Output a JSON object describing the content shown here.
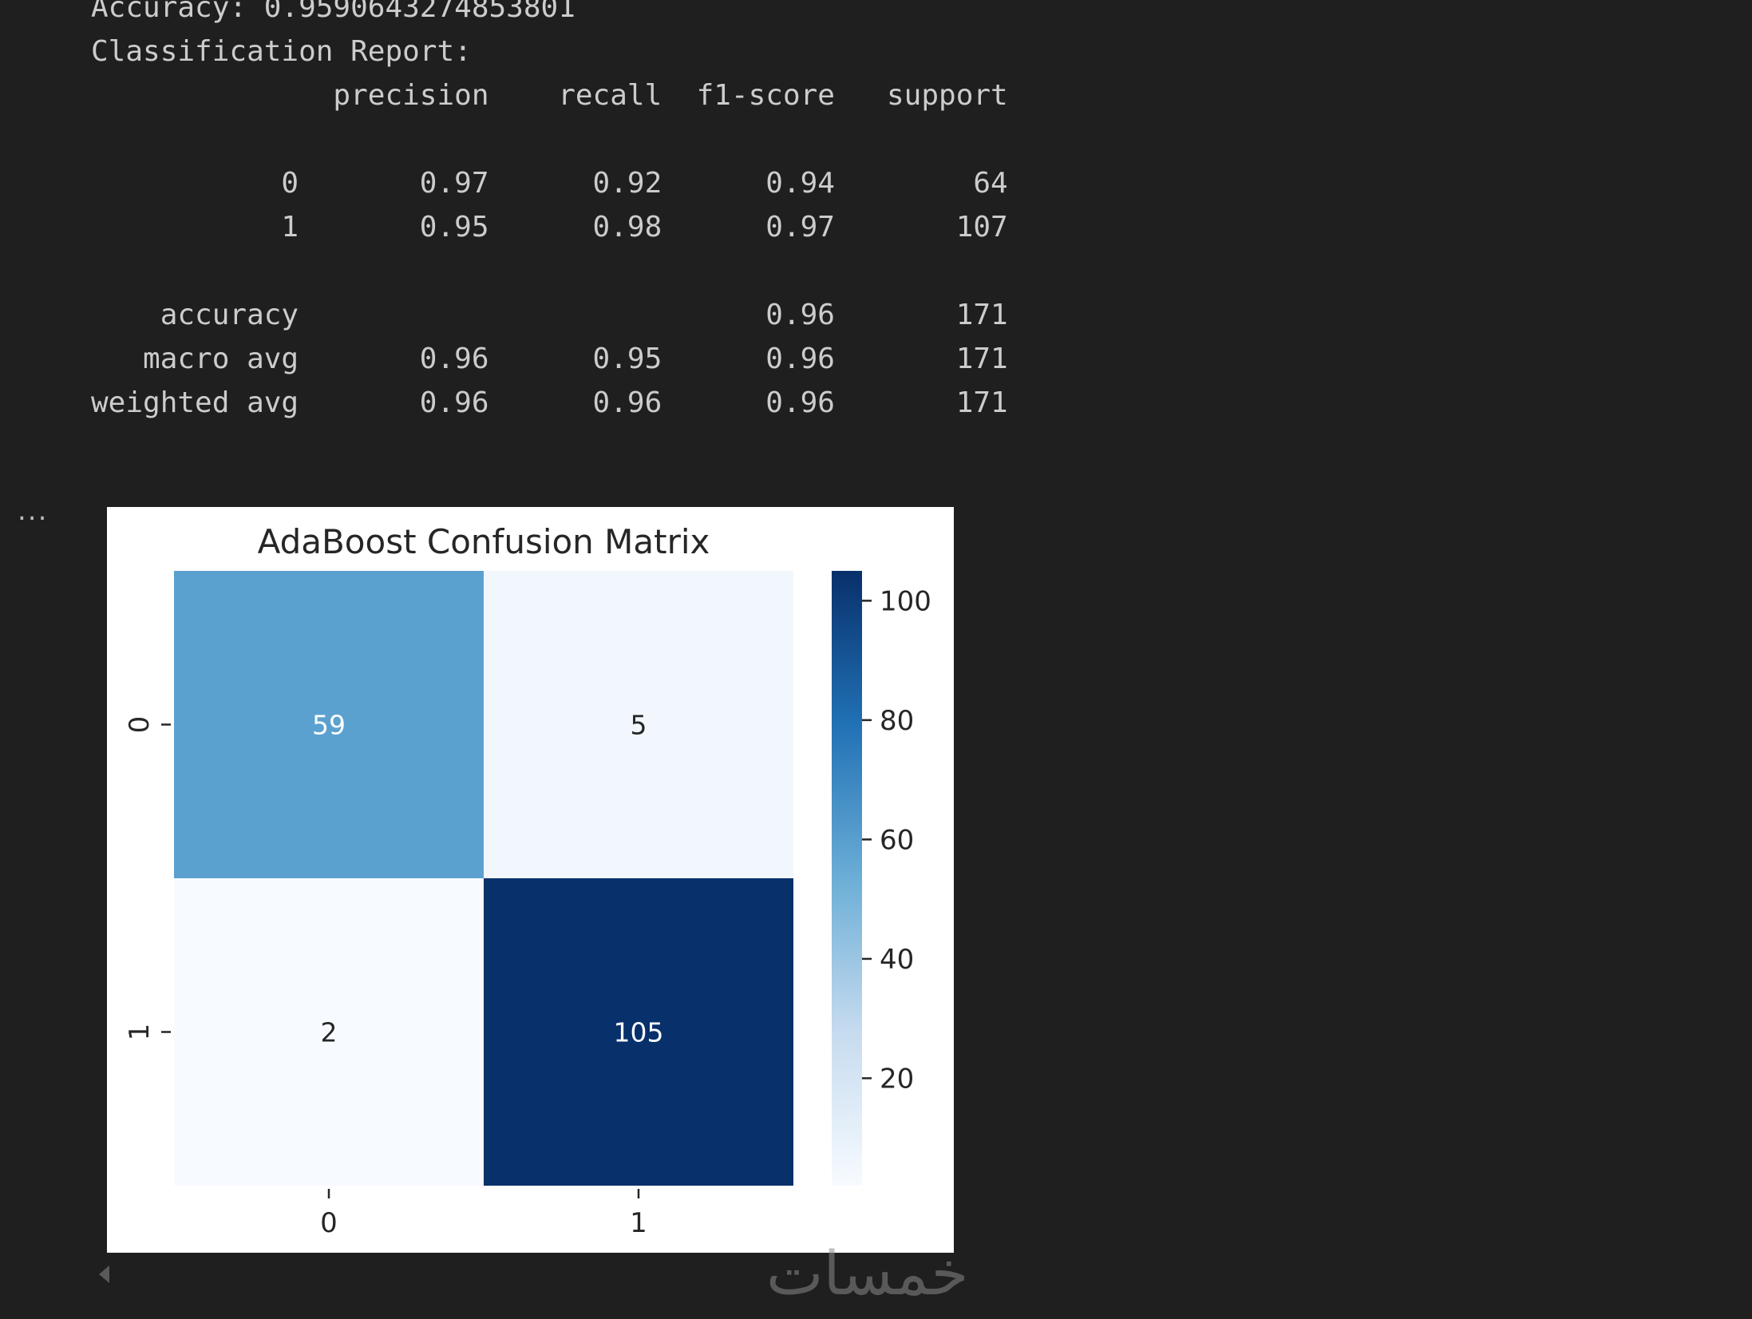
{
  "output": {
    "lines": [
      "Accuracy: 0.9590643274853801",
      "Classification Report:",
      "              precision    recall  f1-score   support",
      "",
      "           0       0.97      0.92      0.94        64",
      "           1       0.95      0.98      0.97       107",
      "",
      "    accuracy                           0.96       171",
      "   macro avg       0.96      0.95      0.96       171",
      "weighted avg       0.96      0.96      0.96       171"
    ]
  },
  "cell_menu_label": "...",
  "watermark_text": "خمسات",
  "chart_data": {
    "type": "heatmap",
    "title": "AdaBoost Confusion Matrix",
    "x_categories": [
      "0",
      "1"
    ],
    "y_categories": [
      "0",
      "1"
    ],
    "matrix": [
      [
        59,
        5
      ],
      [
        2,
        105
      ]
    ],
    "colormap": "Blues",
    "colorbar_range": [
      2,
      105
    ],
    "colorbar_ticks": [
      20,
      40,
      60,
      80,
      100
    ],
    "xlabel": "",
    "ylabel": "",
    "colors": {
      "high": "#08306b",
      "mid_high": "#1f6eb3",
      "mid": "#5ba3d1",
      "mid_low": "#b8d5ea",
      "low": "#f7fbff",
      "annot_dark": "#262626",
      "annot_light": "#ffffff"
    }
  }
}
